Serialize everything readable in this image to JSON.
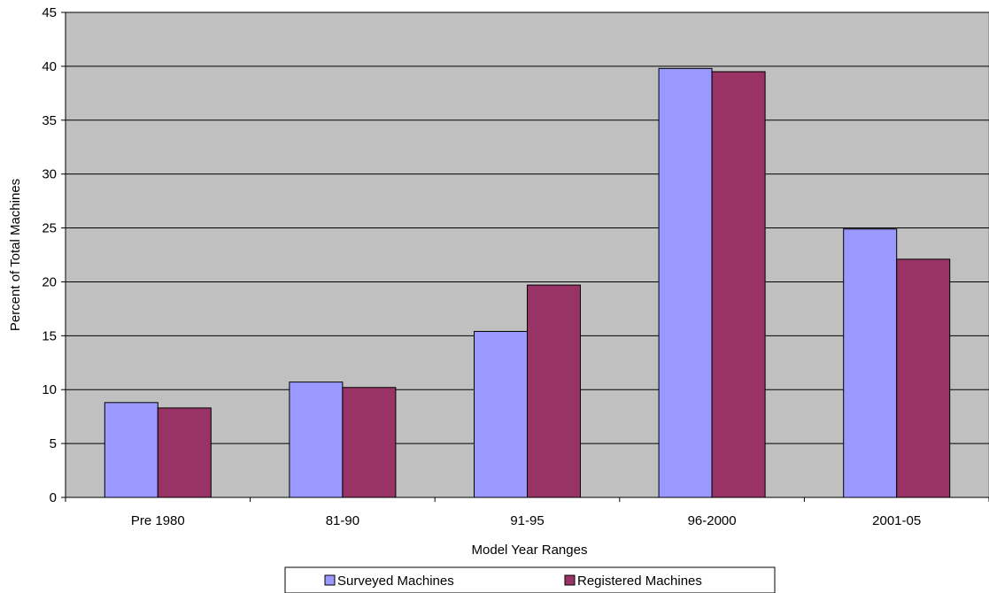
{
  "chart_data": {
    "type": "bar",
    "categories": [
      "Pre 1980",
      "81-90",
      "91-95",
      "96-2000",
      "2001-05"
    ],
    "series": [
      {
        "name": "Surveyed Machines",
        "values": [
          8.8,
          10.7,
          15.4,
          39.8,
          24.9
        ],
        "color": "#9999ff"
      },
      {
        "name": "Registered Machines",
        "values": [
          8.3,
          10.2,
          19.7,
          39.5,
          22.1
        ],
        "color": "#993366"
      }
    ],
    "xlabel": "Model Year Ranges",
    "ylabel": "Percent of Total Machines",
    "ylim": [
      0,
      45
    ],
    "yticks": [
      "0",
      "5",
      "10",
      "15",
      "20",
      "25",
      "30",
      "35",
      "40",
      "45"
    ],
    "grid": true,
    "plot_background": "#c0c0c0",
    "legend_position": "bottom-center"
  }
}
